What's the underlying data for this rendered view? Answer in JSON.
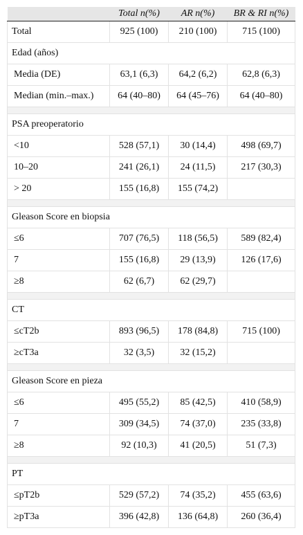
{
  "table": {
    "header": [
      null,
      "Total n(%)",
      "AR n(%)",
      "BR & RI n(%)"
    ],
    "total": [
      "Total",
      "925 (100)",
      "210 (100)",
      "715 (100)"
    ],
    "sections": [
      {
        "title": "Edad (años)",
        "rows": [
          [
            "Media (DE)",
            "63,1 (6,3)",
            "64,2 (6,2)",
            "62,8 (6,3)"
          ],
          [
            "Median (min.–max.)",
            "64 (40–80)",
            "64 (45–76)",
            "64 (40–80)"
          ]
        ]
      },
      {
        "title": "PSA preoperatorio",
        "rows": [
          [
            "<10",
            "528 (57,1)",
            "30 (14,4)",
            "498 (69,7)"
          ],
          [
            "10–20",
            "241 (26,1)",
            "24 (11,5)",
            "217 (30,3)"
          ],
          [
            "> 20",
            "155 (16,8)",
            "155 (74,2)",
            null
          ]
        ]
      },
      {
        "title": "Gleason Score en biopsia",
        "rows": [
          [
            "≤6",
            "707 (76,5)",
            "118 (56,5)",
            "589 (82,4)"
          ],
          [
            "7",
            "155 (16,8)",
            "29 (13,9)",
            "126 (17,6)"
          ],
          [
            "≥8",
            "62 (6,7)",
            "62 (29,7)",
            null
          ]
        ]
      },
      {
        "title": "CT",
        "rows": [
          [
            "≤cT2b",
            "893 (96,5)",
            "178 (84,8)",
            "715 (100)"
          ],
          [
            "≥cT3a",
            "32 (3,5)",
            "32 (15,2)",
            null
          ]
        ]
      },
      {
        "title": "Gleason Score en pieza",
        "rows": [
          [
            "≤6",
            "495 (55,2)",
            "85 (42,5)",
            "410 (58,9)"
          ],
          [
            "7",
            "309 (34,5)",
            "74 (37,0)",
            "235 (33,8)"
          ],
          [
            "≥8",
            "92 (10,3)",
            "41 (20,5)",
            "51 (7,3)"
          ]
        ]
      },
      {
        "title": "PT",
        "rows": [
          [
            "≤pT2b",
            "529 (57,2)",
            "74 (35,2)",
            "455 (63,6)"
          ],
          [
            "≥pT3a",
            "396 (42,8)",
            "136 (64,8)",
            "260 (36,4)"
          ]
        ]
      }
    ]
  }
}
